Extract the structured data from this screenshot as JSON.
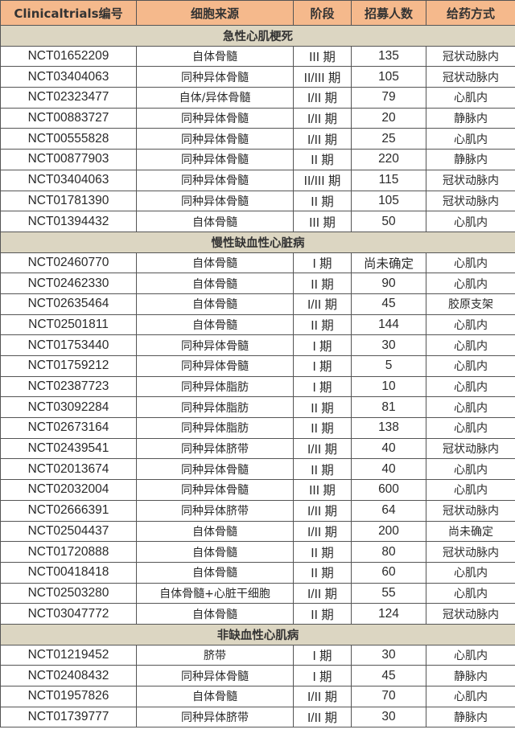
{
  "colors": {
    "header_bg": "#f5b98c",
    "section_bg": "#dcd6c2"
  },
  "headers": [
    "Clinicaltrials编号",
    "细胞来源",
    "阶段",
    "招募人数",
    "给药方式"
  ],
  "sections": [
    {
      "title": "急性心肌梗死",
      "rows": [
        [
          "NCT01652209",
          "自体骨髓",
          "III 期",
          "135",
          "冠状动脉内"
        ],
        [
          "NCT03404063",
          "同种异体骨髓",
          "II/III 期",
          "105",
          "冠状动脉内"
        ],
        [
          "NCT02323477",
          "自体/异体骨髓",
          "I/II 期",
          "79",
          "心肌内"
        ],
        [
          "NCT00883727",
          "同种异体骨髓",
          "I/II 期",
          "20",
          "静脉内"
        ],
        [
          "NCT00555828",
          "同种异体骨髓",
          "I/II 期",
          "25",
          "心肌内"
        ],
        [
          "NCT00877903",
          "同种异体骨髓",
          "II 期",
          "220",
          "静脉内"
        ],
        [
          "NCT03404063",
          "同种异体骨髓",
          "II/III 期",
          "115",
          "冠状动脉内"
        ],
        [
          "NCT01781390",
          "同种异体骨髓",
          "II 期",
          "105",
          "冠状动脉内"
        ],
        [
          "NCT01394432",
          "自体骨髓",
          "III 期",
          "50",
          "心肌内"
        ]
      ]
    },
    {
      "title": "慢性缺血性心脏病",
      "rows": [
        [
          "NCT02460770",
          "自体骨髓",
          "I 期",
          "尚未确定",
          "心肌内"
        ],
        [
          "NCT02462330",
          "自体骨髓",
          "II 期",
          "90",
          "心肌内"
        ],
        [
          "NCT02635464",
          "自体骨髓",
          "I/II 期",
          "45",
          "胶原支架"
        ],
        [
          "NCT02501811",
          "自体骨髓",
          "II 期",
          "144",
          "心肌内"
        ],
        [
          "NCT01753440",
          "同种异体骨髓",
          "I 期",
          "30",
          "心肌内"
        ],
        [
          "NCT01759212",
          "同种异体骨髓",
          "I 期",
          "5",
          "心肌内"
        ],
        [
          "NCT02387723",
          "同种异体脂肪",
          "I 期",
          "10",
          "心肌内"
        ],
        [
          "NCT03092284",
          "同种异体脂肪",
          "II 期",
          "81",
          "心肌内"
        ],
        [
          "NCT02673164",
          "同种异体脂肪",
          "II 期",
          "138",
          "心肌内"
        ],
        [
          "NCT02439541",
          "同种异体脐带",
          "I/II 期",
          "40",
          "冠状动脉内"
        ],
        [
          "NCT02013674",
          "同种异体骨髓",
          "II 期",
          "40",
          "心肌内"
        ],
        [
          "NCT02032004",
          "同种异体骨髓",
          "III 期",
          "600",
          "心肌内"
        ],
        [
          "NCT02666391",
          "同种异体脐带",
          "I/II 期",
          "64",
          "冠状动脉内"
        ],
        [
          "NCT02504437",
          "自体骨髓",
          "I/II 期",
          "200",
          "尚未确定"
        ],
        [
          "NCT01720888",
          "自体骨髓",
          "II 期",
          "80",
          "冠状动脉内"
        ],
        [
          "NCT00418418",
          "自体骨髓",
          "II 期",
          "60",
          "心肌内"
        ],
        [
          "NCT02503280",
          "自体骨髓+心脏干细胞",
          "I/II 期",
          "55",
          "心肌内"
        ],
        [
          "NCT03047772",
          "自体骨髓",
          "II 期",
          "124",
          "冠状动脉内"
        ]
      ]
    },
    {
      "title": "非缺血性心肌病",
      "rows": [
        [
          "NCT01219452",
          "脐带",
          "I 期",
          "30",
          "心肌内"
        ],
        [
          "NCT02408432",
          "同种异体骨髓",
          "I 期",
          "45",
          "静脉内"
        ],
        [
          "NCT01957826",
          "自体骨髓",
          "I/II 期",
          "70",
          "心肌内"
        ],
        [
          "NCT01739777",
          "同种异体脐带",
          "I/II 期",
          "30",
          "静脉内"
        ]
      ]
    }
  ]
}
